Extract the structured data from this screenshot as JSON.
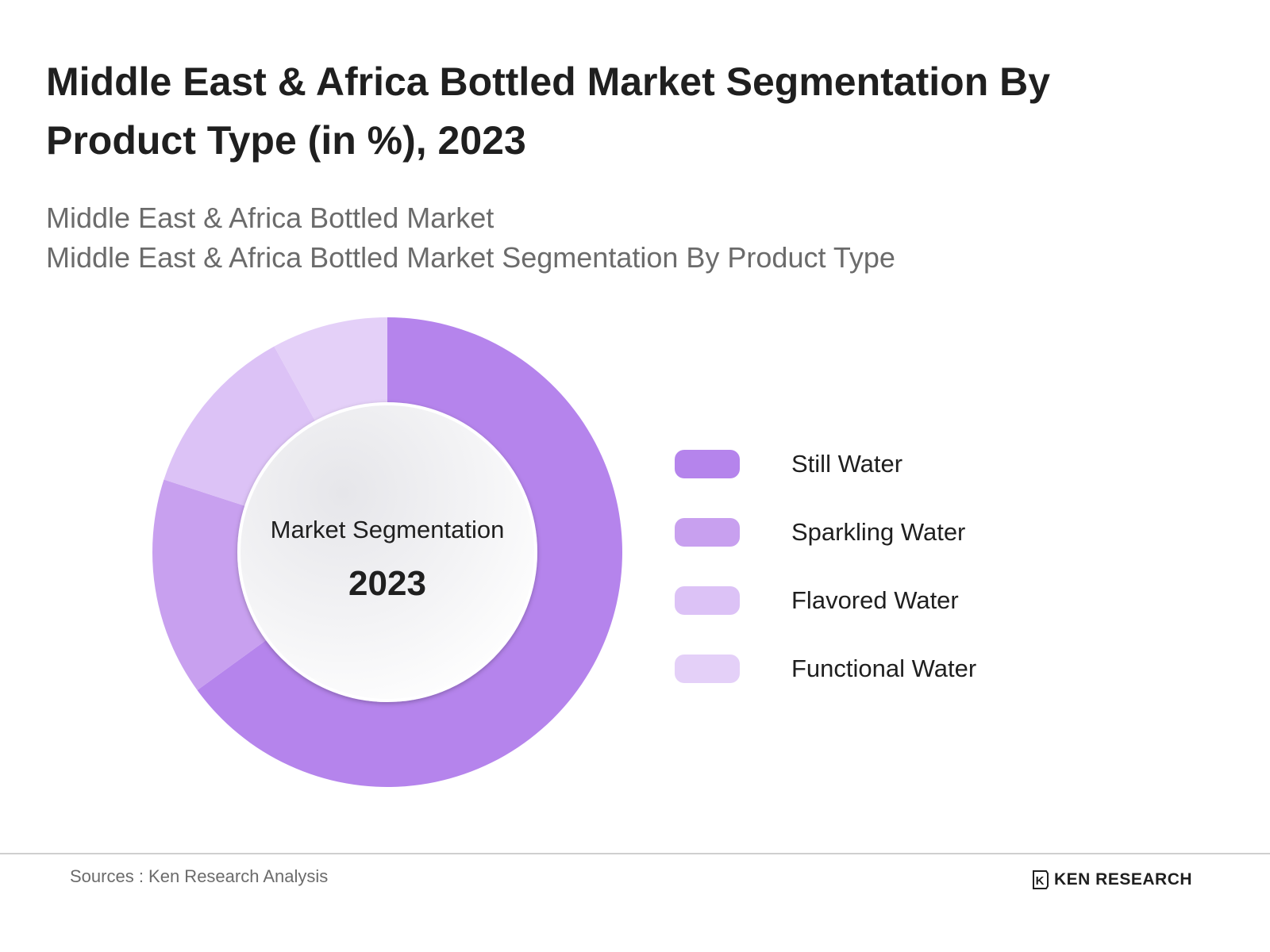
{
  "chart_data": {
    "type": "pie",
    "title": "Middle East & Africa Bottled Market Segmentation By Product Type (in %), 2023",
    "subtitle_lines": [
      "Middle East & Africa Bottled Market",
      "Middle East & Africa Bottled Market Segmentation By Product Type"
    ],
    "center_label": "Market Segmentation",
    "center_value": "2023",
    "categories": [
      "Still Water",
      "Sparkling Water",
      "Flavored Water",
      "Functional Water"
    ],
    "values": [
      65,
      15,
      12,
      8
    ],
    "colors": [
      "#b584ec",
      "#c8a0ef",
      "#dcc2f6",
      "#e4d0f8"
    ],
    "legend_position": "right"
  },
  "footer": {
    "sources": "Sources : Ken Research Analysis",
    "brand": "KEN RESEARCH",
    "brand_mark": "K"
  }
}
